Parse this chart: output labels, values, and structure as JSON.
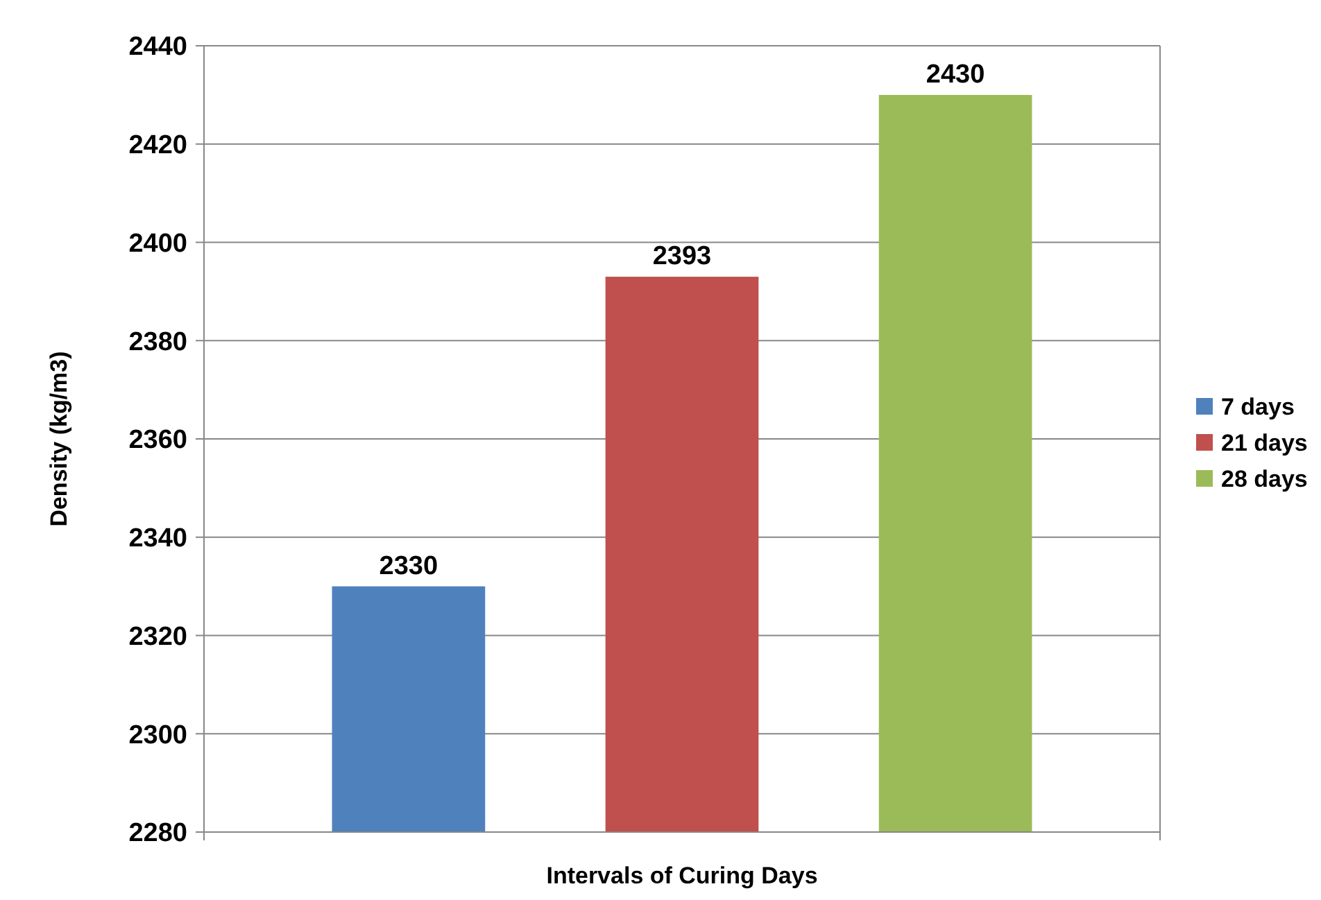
{
  "chart_data": {
    "type": "bar",
    "xlabel": "Intervals of Curing Days",
    "ylabel": "Density (kg/m3)",
    "categories": [
      null
    ],
    "series": [
      {
        "name": "7 days",
        "color": "#4f81bd",
        "values": [
          2330
        ]
      },
      {
        "name": "21 days",
        "color": "#c0504d",
        "values": [
          2393
        ]
      },
      {
        "name": "28 days",
        "color": "#9bbb59",
        "values": [
          2430
        ]
      }
    ],
    "ylim": [
      2280,
      2440
    ],
    "yticks": [
      2280,
      2300,
      2320,
      2340,
      2360,
      2380,
      2400,
      2420,
      2440
    ],
    "grid": "y",
    "legend": "right",
    "data_labels": true
  }
}
